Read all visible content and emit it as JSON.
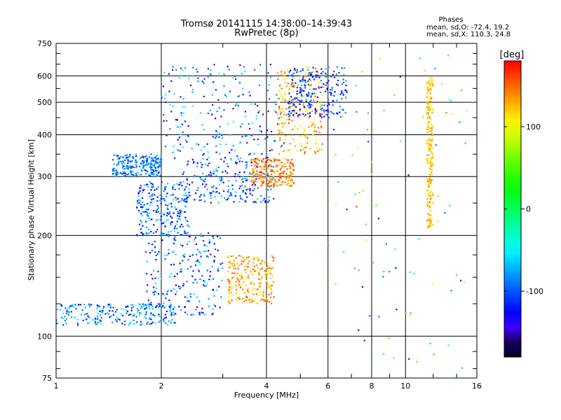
{
  "chart_data": {
    "type": "scatter",
    "title": "Tromsø 20141115 14:38:00–14:39:43",
    "subtitle": "RwPretec (8p)",
    "xlabel": "Frequency [MHz]",
    "ylabel": "Stationary phase Virtual Height [km]",
    "x_scale": "log",
    "y_scale": "log",
    "xlim": [
      1,
      16
    ],
    "ylim": [
      75,
      750
    ],
    "x_ticks": [
      1,
      2,
      4,
      6,
      8,
      10,
      16
    ],
    "y_ticks": [
      75,
      100,
      200,
      300,
      400,
      500,
      600,
      750
    ],
    "grid": true,
    "legend": {
      "title": "Phases",
      "lines": [
        "mean, sd,O: -72.4, 19.2",
        "mean, sd,X: 110.3, 24.8"
      ]
    },
    "colorbar": {
      "label": "[deg]",
      "range": [
        -180,
        180
      ],
      "ticks": [
        100,
        0,
        -100
      ],
      "colormap": "rainbow"
    },
    "point_clusters": [
      {
        "x_range": [
          1.45,
          2.0
        ],
        "y_range": [
          300,
          350
        ],
        "phase_range": [
          -120,
          -60
        ]
      },
      {
        "x_range": [
          1.7,
          2.4
        ],
        "y_range": [
          200,
          290
        ],
        "phase_range": [
          -140,
          -50
        ]
      },
      {
        "x_range": [
          1.8,
          3.0
        ],
        "y_range": [
          115,
          205
        ],
        "phase_range": [
          -150,
          -40
        ]
      },
      {
        "x_range": [
          1.0,
          2.2
        ],
        "y_range": [
          108,
          125
        ],
        "phase_range": [
          -130,
          -40
        ]
      },
      {
        "x_range": [
          2.0,
          4.5
        ],
        "y_range": [
          330,
          650
        ],
        "phase_range": [
          -150,
          -40
        ]
      },
      {
        "x_range": [
          2.3,
          4.2
        ],
        "y_range": [
          250,
          340
        ],
        "phase_range": [
          -150,
          -50
        ]
      },
      {
        "x_range": [
          3.1,
          4.2
        ],
        "y_range": [
          125,
          175
        ],
        "phase_range": [
          100,
          160
        ]
      },
      {
        "x_range": [
          4.3,
          5.8
        ],
        "y_range": [
          350,
          640
        ],
        "phase_range": [
          90,
          160
        ]
      },
      {
        "x_range": [
          3.6,
          4.8
        ],
        "y_range": [
          280,
          340
        ],
        "phase_range": [
          120,
          160
        ]
      },
      {
        "x_range": [
          4.6,
          6.8
        ],
        "y_range": [
          450,
          640
        ],
        "phase_range": [
          -140,
          -70
        ]
      },
      {
        "x_range": [
          11.5,
          12.0
        ],
        "y_range": [
          210,
          600
        ],
        "phase_range": [
          100,
          140
        ]
      },
      {
        "x_range": [
          6.0,
          15.0
        ],
        "y_range": [
          80,
          700
        ],
        "phase_range": [
          -150,
          150
        ]
      }
    ],
    "color": {
      "background": "#ffffff",
      "axes": "#000000",
      "grid": "#000000"
    }
  }
}
